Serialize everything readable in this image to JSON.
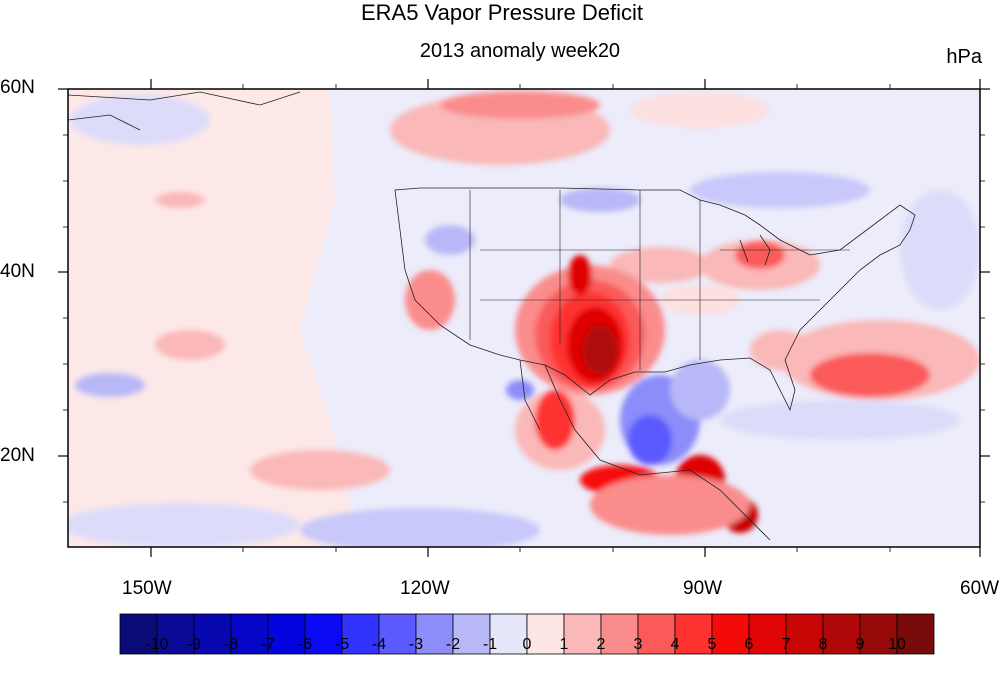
{
  "title": "ERA5 Vapor Pressure Deficit",
  "subtitle": "2013 anomaly week20",
  "units": "hPa",
  "lat_labels": [
    "60N",
    "40N",
    "20N"
  ],
  "lon_labels": [
    "150W",
    "120W",
    "90W",
    "60W"
  ],
  "colorbar": {
    "labels": [
      "-10",
      "-9",
      "-8",
      "-7",
      "-6",
      "-5",
      "-4",
      "-3",
      "-2",
      "-1",
      "0",
      "1",
      "2",
      "3",
      "4",
      "5",
      "6",
      "7",
      "8",
      "9",
      "10"
    ],
    "colors": [
      "#0a0a78",
      "#0a0a96",
      "#0808b0",
      "#0606c8",
      "#0404e0",
      "#0a0af5",
      "#3232ff",
      "#5a5aff",
      "#8c8cfa",
      "#b8b8f8",
      "#e6e6fa",
      "#ffe6e6",
      "#fab8b8",
      "#fa8c8c",
      "#fa5a5a",
      "#ff3232",
      "#f50a0a",
      "#e00404",
      "#c80606",
      "#b00808",
      "#960a0a",
      "#780a0a"
    ]
  },
  "map_colors": {
    "ocean_base": "#ececfa",
    "slight_pos": "#fde8e8",
    "slight_neg": "#dcdcfa"
  }
}
